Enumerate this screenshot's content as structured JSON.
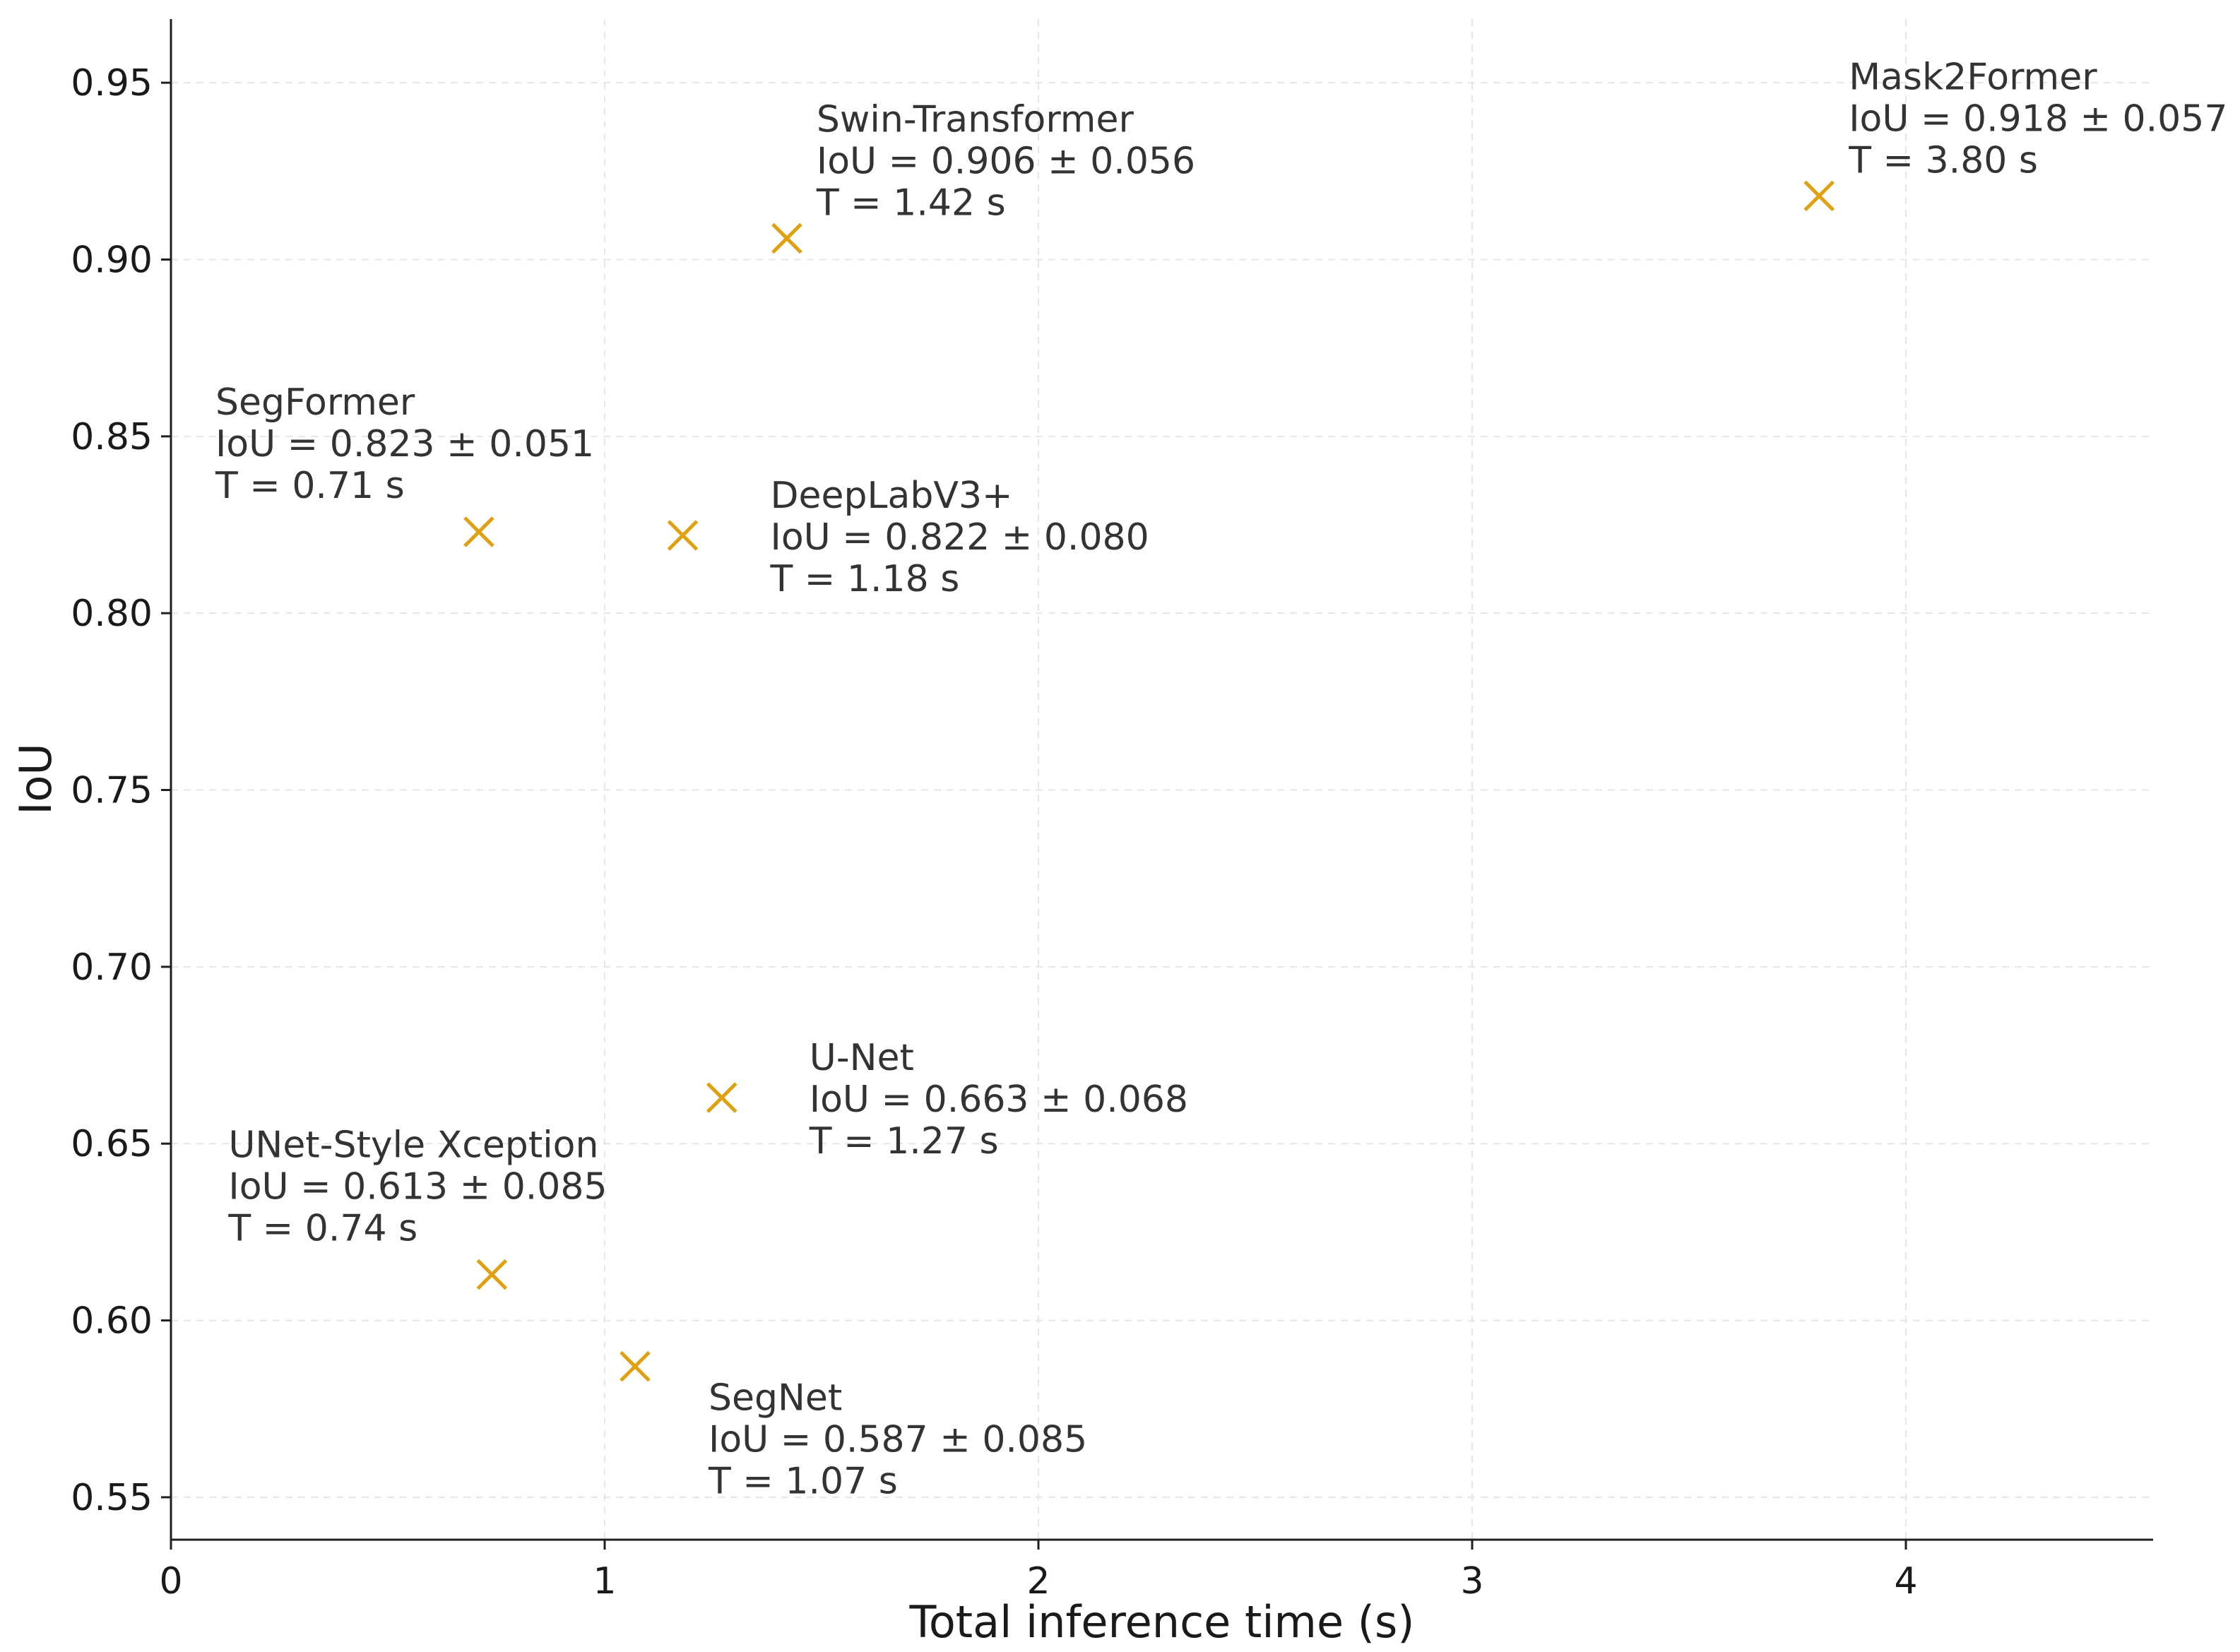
{
  "chart_data": {
    "type": "scatter",
    "title": "",
    "xlabel": "Total inference time (s)",
    "ylabel": "IoU",
    "xlim": [
      0,
      4.57
    ],
    "ylim": [
      0.538,
      0.968
    ],
    "xticks": [
      0,
      1,
      2,
      3,
      4
    ],
    "xtick_labels": [
      "0",
      "1",
      "2",
      "3",
      "4"
    ],
    "yticks": [
      0.55,
      0.6,
      0.65,
      0.7,
      0.75,
      0.8,
      0.85,
      0.9,
      0.95
    ],
    "ytick_labels": [
      "0.55",
      "0.60",
      "0.65",
      "0.70",
      "0.75",
      "0.80",
      "0.85",
      "0.90",
      "0.95"
    ],
    "grid": true,
    "marker": "x",
    "marker_color": "#e0a010",
    "points": [
      {
        "name": "Swin-Transformer",
        "x": 1.42,
        "y": 0.906,
        "iou_label": "IoU = 0.906 ± 0.056",
        "time_label": "T = 1.42 s",
        "label_pos": "above-right"
      },
      {
        "name": "Mask2Former",
        "x": 3.8,
        "y": 0.918,
        "iou_label": "IoU = 0.918 ± 0.057",
        "time_label": "T = 3.80 s",
        "label_pos": "above-right"
      },
      {
        "name": "SegFormer",
        "x": 0.71,
        "y": 0.823,
        "iou_label": "IoU = 0.823 ± 0.051",
        "time_label": "T = 0.71 s",
        "label_pos": "above-left"
      },
      {
        "name": "DeepLabV3+",
        "x": 1.18,
        "y": 0.822,
        "iou_label": "IoU = 0.822 ± 0.080",
        "time_label": "T = 1.18 s",
        "label_pos": "right"
      },
      {
        "name": "U-Net",
        "x": 1.27,
        "y": 0.663,
        "iou_label": "IoU = 0.663 ± 0.068",
        "time_label": "T = 1.27 s",
        "label_pos": "right"
      },
      {
        "name": "UNet-Style Xception",
        "x": 0.74,
        "y": 0.613,
        "iou_label": "IoU = 0.613 ± 0.085",
        "time_label": "T = 0.74 s",
        "label_pos": "above-left"
      },
      {
        "name": "SegNet",
        "x": 1.07,
        "y": 0.587,
        "iou_label": "IoU = 0.587 ± 0.085",
        "time_label": "T = 1.07 s",
        "label_pos": "below-right"
      }
    ]
  }
}
